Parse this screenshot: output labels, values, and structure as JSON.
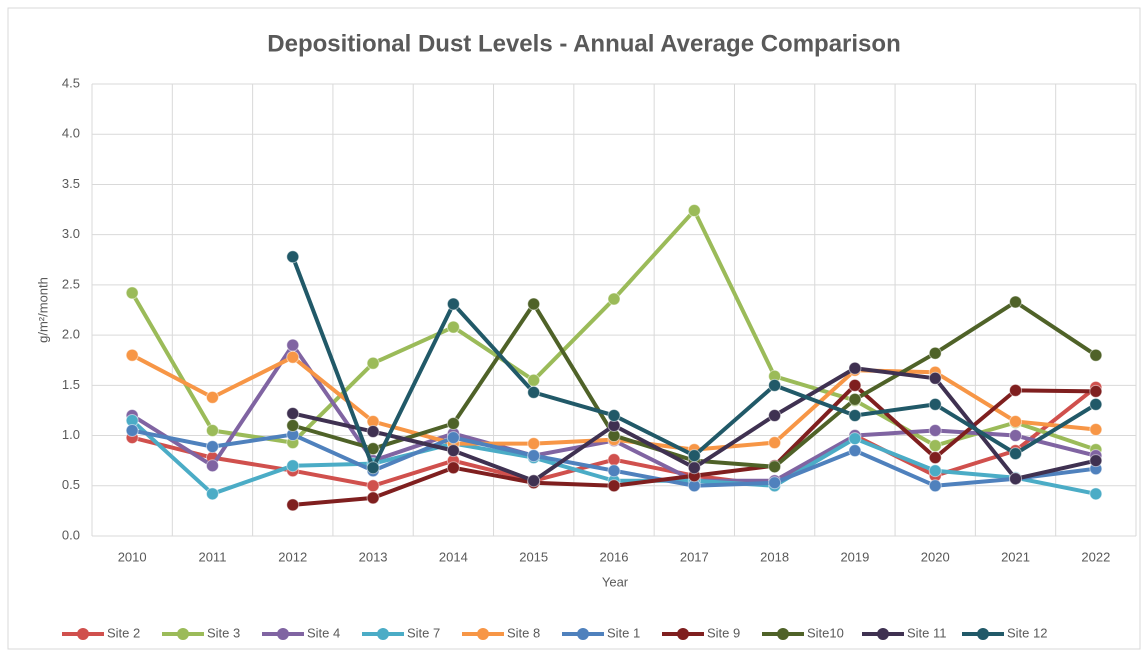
{
  "chart_data": {
    "type": "line",
    "title": "Depositional Dust Levels - Annual Average Comparison",
    "x_label": "Year",
    "y_label": "g/m²/month",
    "categories": [
      "2010",
      "2011",
      "2012",
      "2013",
      "2014",
      "2015",
      "2016",
      "2017",
      "2018",
      "2019",
      "2020",
      "2021",
      "2022"
    ],
    "ylim": [
      0,
      4.5
    ],
    "yticks": [
      {
        "value": 0,
        "label": "0.0"
      },
      {
        "value": 0.5,
        "label": "0.5"
      },
      {
        "value": 1,
        "label": "1.0"
      },
      {
        "value": 1.5,
        "label": "1.5"
      },
      {
        "value": 2,
        "label": "2.0"
      },
      {
        "value": 2.5,
        "label": "2.5"
      },
      {
        "value": 3,
        "label": "3.0"
      },
      {
        "value": 3.5,
        "label": "3.5"
      },
      {
        "value": 4,
        "label": "4.0"
      },
      {
        "value": 4.5,
        "label": "4.5"
      }
    ],
    "grid": true,
    "legend": "bottom",
    "series": [
      {
        "name": "Site 2",
        "color": "#d0504d",
        "values": [
          0.98,
          0.78,
          0.65,
          0.5,
          0.75,
          0.55,
          0.76,
          0.6,
          0.5,
          1.0,
          0.6,
          0.85,
          1.48
        ]
      },
      {
        "name": "Site 3",
        "color": "#9bbb59",
        "values": [
          2.42,
          1.05,
          0.93,
          1.72,
          2.08,
          1.55,
          2.36,
          3.24,
          1.59,
          1.35,
          0.9,
          1.13,
          0.86
        ]
      },
      {
        "name": "Site 4",
        "color": "#8064a2",
        "values": [
          1.2,
          0.7,
          1.9,
          0.75,
          1.02,
          0.8,
          0.95,
          0.55,
          0.55,
          1.0,
          1.05,
          1.0,
          0.8
        ]
      },
      {
        "name": "Site 7",
        "color": "#4bacc6",
        "values": [
          1.15,
          0.42,
          0.7,
          0.72,
          0.92,
          0.78,
          0.55,
          0.55,
          0.5,
          0.97,
          0.65,
          0.58,
          0.42
        ]
      },
      {
        "name": "Site 8",
        "color": "#f79646",
        "values": [
          1.8,
          1.38,
          1.78,
          1.14,
          0.92,
          0.92,
          0.96,
          0.86,
          0.93,
          1.65,
          1.63,
          1.14,
          1.06
        ]
      },
      {
        "name": "Site 1",
        "color": "#4f81bd",
        "values": [
          1.05,
          0.89,
          1.01,
          0.65,
          0.98,
          0.8,
          0.65,
          0.5,
          0.53,
          0.85,
          0.5,
          0.57,
          0.67
        ]
      },
      {
        "name": "Site 9",
        "color": "#7f1f1f",
        "values": [
          null,
          null,
          0.31,
          0.38,
          0.68,
          0.53,
          0.5,
          0.6,
          0.7,
          1.5,
          0.78,
          1.45,
          1.44
        ]
      },
      {
        "name": "Site10",
        "color": "#4f6228",
        "values": [
          null,
          null,
          1.1,
          0.87,
          1.12,
          2.31,
          1.0,
          0.75,
          0.69,
          1.36,
          1.82,
          2.33,
          1.8
        ]
      },
      {
        "name": "Site 11",
        "color": "#3f3151",
        "values": [
          null,
          null,
          1.22,
          1.04,
          0.85,
          0.55,
          1.1,
          0.68,
          1.2,
          1.67,
          1.57,
          0.57,
          0.75
        ]
      },
      {
        "name": "Site 12",
        "color": "#215968",
        "values": [
          null,
          null,
          2.78,
          0.68,
          2.31,
          1.43,
          1.2,
          0.8,
          1.5,
          1.2,
          1.31,
          0.82,
          1.31
        ]
      }
    ]
  }
}
